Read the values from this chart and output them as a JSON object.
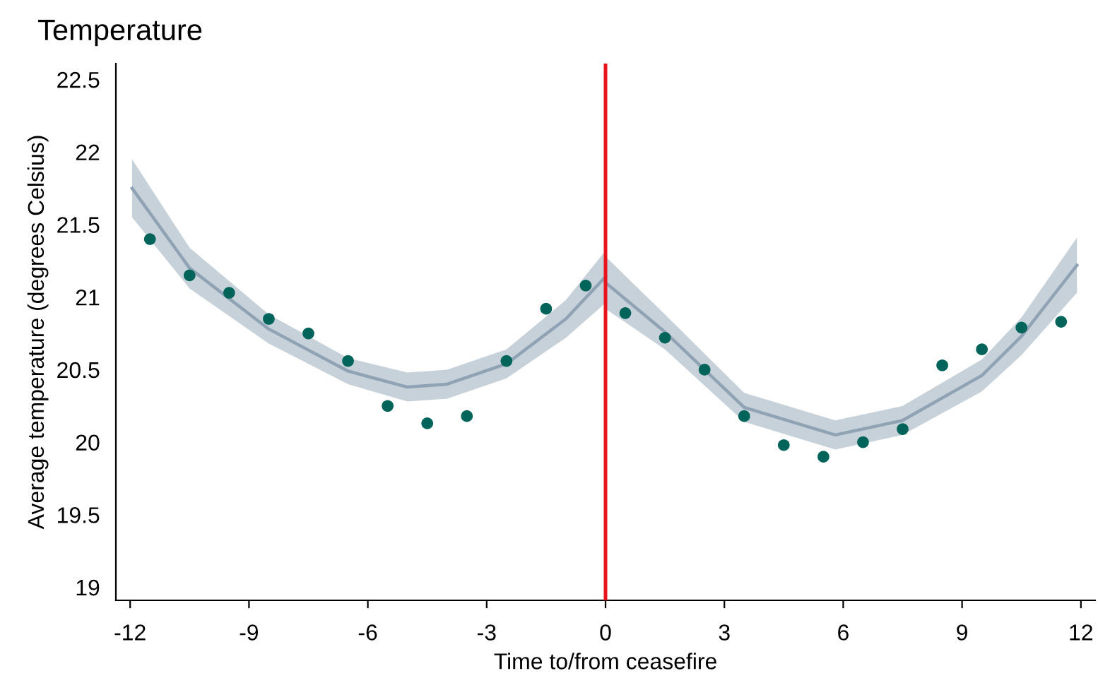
{
  "chart_data": {
    "type": "scatter",
    "title": "Temperature",
    "xlabel": "Time to/from ceasefire",
    "ylabel": "Average temperature (degrees Celsius)",
    "xlim": [
      -12.36,
      12.36
    ],
    "xticks": [
      -12,
      -9,
      -6,
      -3,
      0,
      3,
      6,
      9,
      12
    ],
    "ylim": [
      18.91,
      22.61
    ],
    "yticks": [
      19,
      19.5,
      20,
      20.5,
      21,
      21.5,
      22,
      22.5
    ],
    "grid": false,
    "legend": false,
    "ref_lines": [
      {
        "axis": "x",
        "value": 0,
        "label": null,
        "color": "#e8141c",
        "line_style": "solid"
      }
    ],
    "series": [
      {
        "marker": "circle",
        "color": "#00645a",
        "x": [
          -11.5,
          -10.5,
          -9.5,
          -8.5,
          -7.5,
          -6.5,
          -5.5,
          -4.5,
          -3.5,
          -2.5,
          -1.5,
          -0.5,
          0.5,
          1.5,
          2.5,
          3.5,
          4.5,
          5.5,
          6.5,
          7.5,
          8.5,
          9.5,
          10.5,
          11.5
        ],
        "values": [
          21.4,
          21.15,
          21.03,
          20.85,
          20.75,
          20.56,
          20.25,
          20.13,
          20.18,
          20.56,
          20.92,
          21.08,
          20.89,
          20.72,
          20.5,
          20.18,
          19.98,
          19.9,
          20.0,
          20.09,
          20.53,
          20.64,
          20.79,
          20.83
        ]
      },
      {
        "type": "line",
        "marker": "none",
        "color": "#8fa3b5",
        "x": [
          -11.95,
          -10.5,
          -8.5,
          -6.5,
          -5,
          -4,
          -2.5,
          -1,
          0
        ],
        "values": [
          21.75,
          21.2,
          20.78,
          20.49,
          20.38,
          20.4,
          20.54,
          20.85,
          21.14
        ],
        "lower": [
          21.55,
          21.06,
          20.68,
          20.4,
          20.28,
          20.3,
          20.44,
          20.72,
          20.96
        ],
        "upper": [
          21.95,
          21.34,
          20.88,
          20.58,
          20.48,
          20.5,
          20.64,
          20.98,
          21.32
        ]
      },
      {
        "type": "line",
        "marker": "none",
        "color": "#8fa3b5",
        "x": [
          0,
          1.5,
          3.5,
          5.8,
          7.5,
          9.5,
          10.5,
          11.9
        ],
        "values": [
          21.1,
          20.76,
          20.24,
          20.05,
          20.15,
          20.46,
          20.73,
          21.22
        ],
        "lower": [
          20.92,
          20.64,
          20.14,
          19.95,
          20.05,
          20.35,
          20.6,
          21.03
        ],
        "upper": [
          21.28,
          20.88,
          20.34,
          20.15,
          20.25,
          20.57,
          20.86,
          21.41
        ]
      }
    ]
  }
}
